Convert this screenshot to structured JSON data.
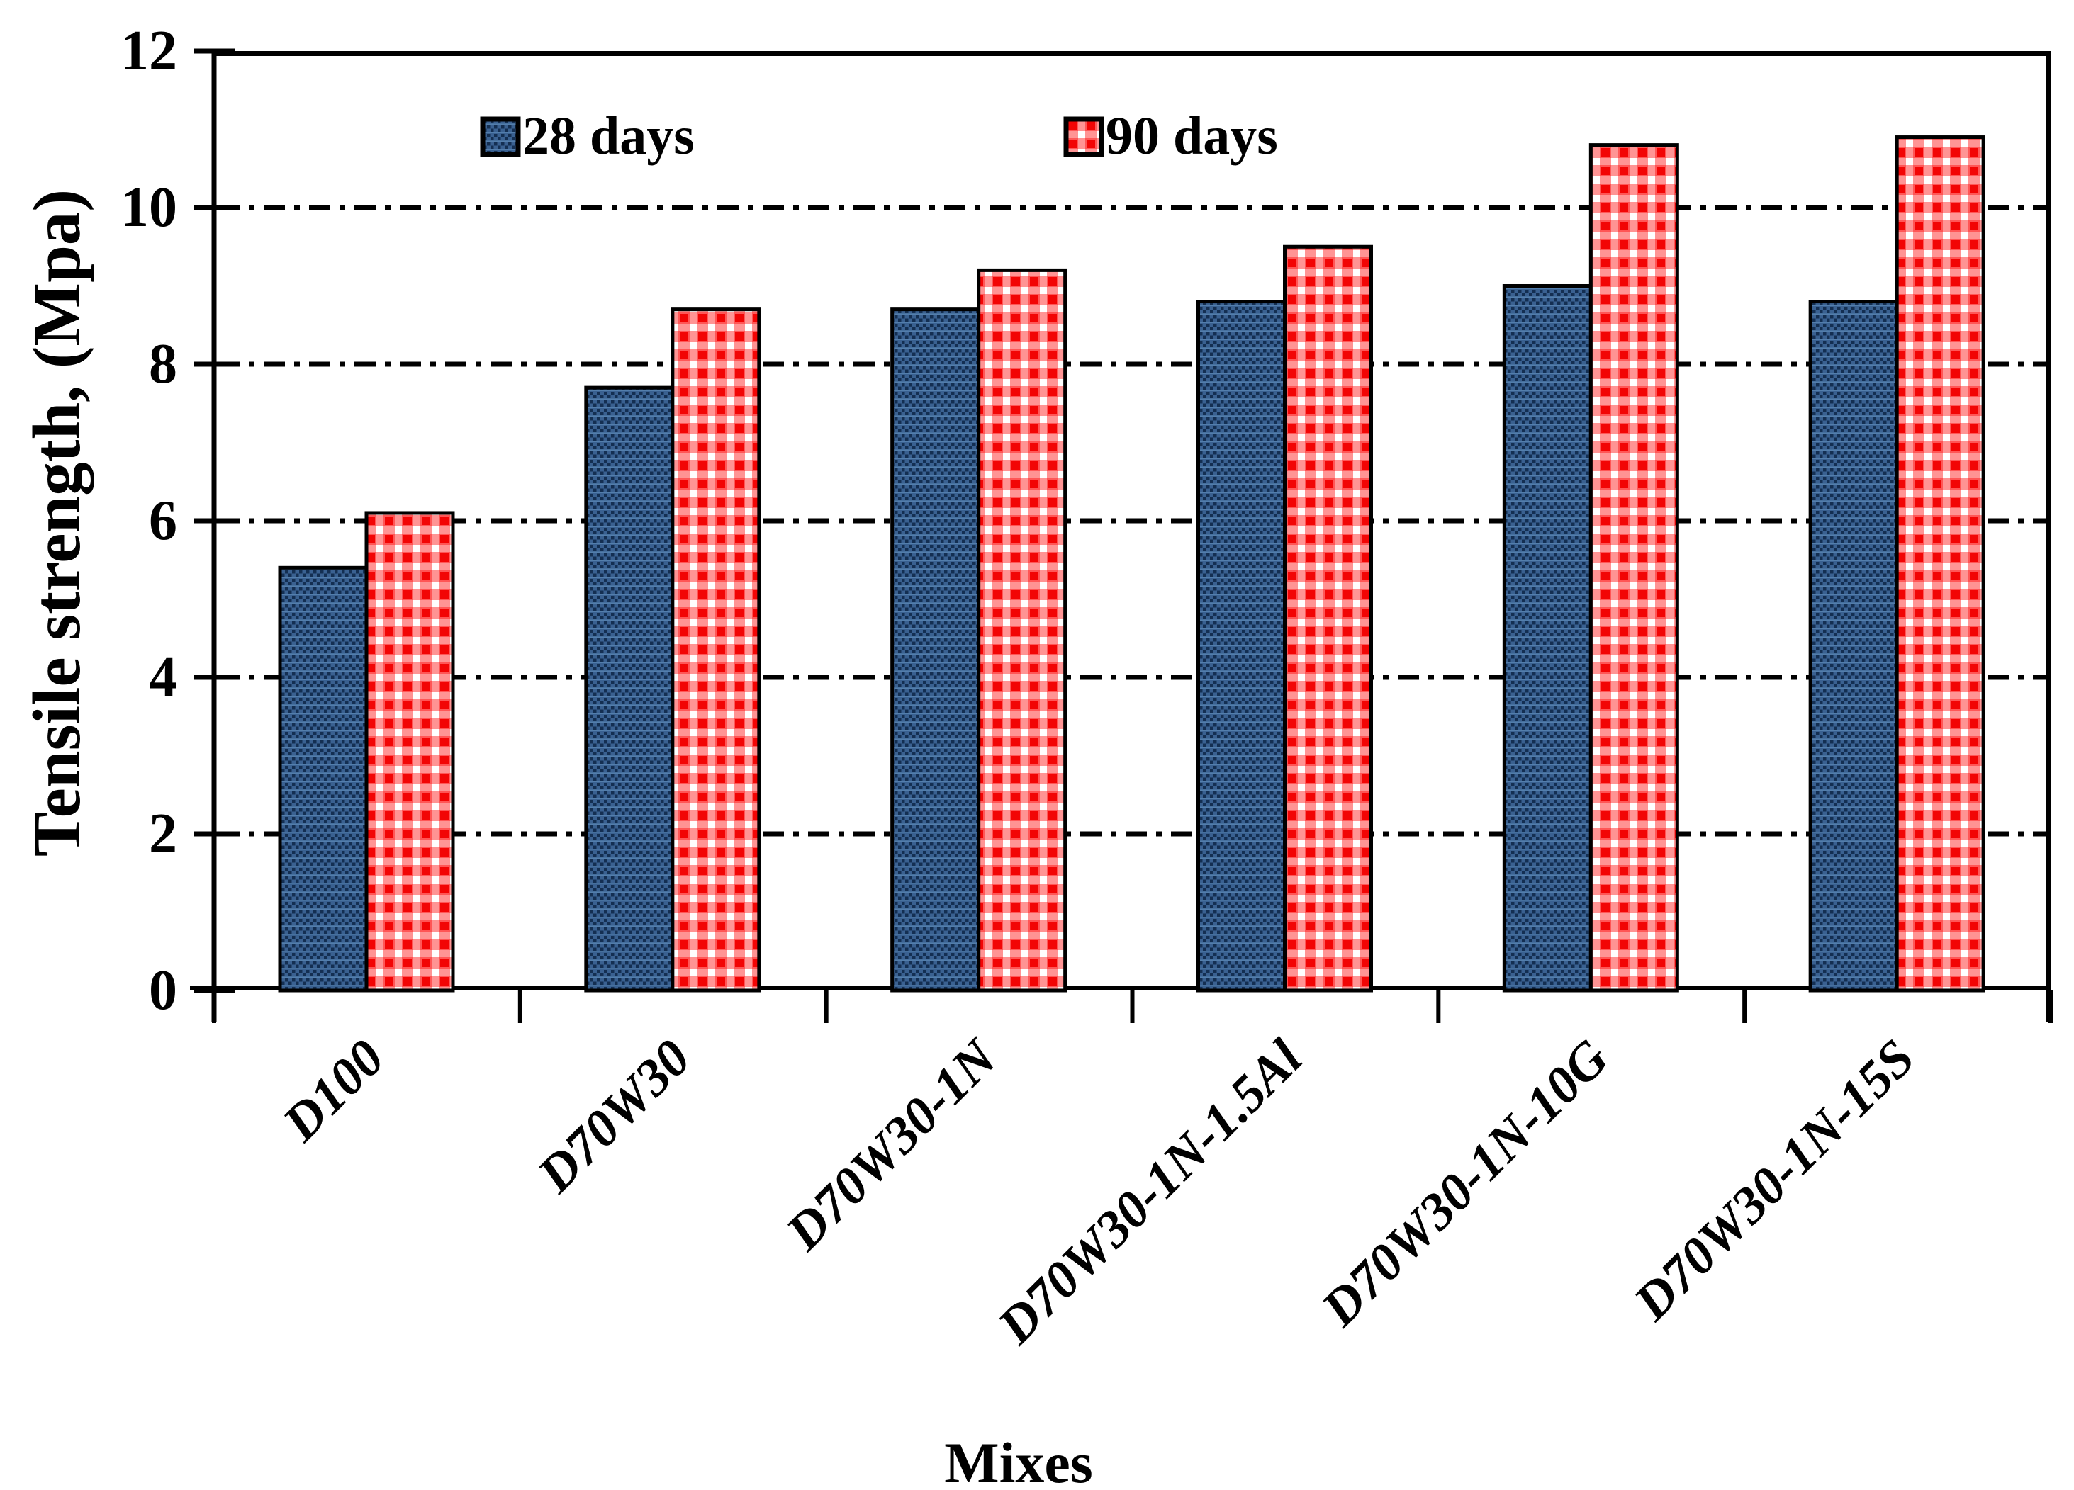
{
  "chart_data": {
    "type": "bar",
    "title": "",
    "xlabel": "Mixes",
    "ylabel": "Tensile strength, (Mpa)",
    "categories": [
      "D100",
      "D70W30",
      "D70W30-1N",
      "D70W30-1N-1.5Al",
      "D70W30-1N-10G",
      "D70W30-1N-15S"
    ],
    "series": [
      {
        "name": "28 days",
        "values": [
          5.4,
          7.7,
          8.7,
          8.8,
          9.0,
          8.8
        ],
        "color": "#3A6191",
        "pattern": "dark-blue-checker-dots",
        "pattern_color": "#142F52"
      },
      {
        "name": "90 days",
        "values": [
          6.1,
          8.7,
          9.2,
          9.5,
          10.8,
          10.9
        ],
        "color": "#F20505",
        "pattern": "red-dot-grid-on-white",
        "pattern_color": "#FFFFFF"
      }
    ],
    "ylim": [
      0,
      12
    ],
    "yticks": [
      0,
      2,
      4,
      6,
      8,
      10,
      12
    ],
    "gridlines_at": [
      2,
      4,
      6,
      8,
      10
    ],
    "grid_style": "horizontal dash-dot",
    "bar_outline_color": "#000000",
    "legend_position": "inside-top-left"
  }
}
